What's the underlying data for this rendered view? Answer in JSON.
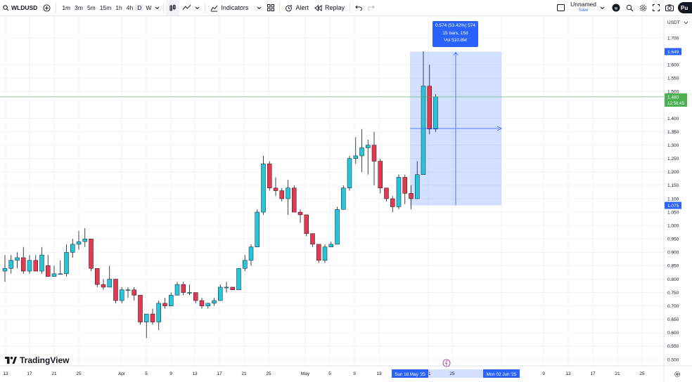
{
  "toolbar": {
    "symbol": "WLDUSD",
    "timeframes": [
      "1m",
      "3m",
      "5m",
      "15m",
      "1h",
      "4h",
      "D",
      "W"
    ],
    "active_timeframe": "D",
    "indicators_label": "Indicators",
    "alert_label": "Alert",
    "replay_label": "Replay",
    "layout_name": "Unnamed",
    "layout_save": "Save",
    "publish_label": "Pu"
  },
  "price_axis": {
    "currency": "USDT",
    "ticks": [
      "1.700",
      "1.600",
      "1.550",
      "1.500",
      "1.400",
      "1.350",
      "1.300",
      "1.250",
      "1.200",
      "1.150",
      "1.100",
      "1.050",
      "1.000",
      "0.950",
      "0.900",
      "0.850",
      "0.800",
      "0.750",
      "0.700",
      "0.650",
      "0.600",
      "0.550",
      "0.500"
    ],
    "range_top_label": "1.649",
    "range_bottom_label": "1.075",
    "last_price": "1.480",
    "countdown": "12:56:45"
  },
  "time_axis": {
    "labels": [
      "13",
      "17",
      "21",
      "25",
      "Apr",
      "5",
      "9",
      "13",
      "17",
      "21",
      "25",
      "May",
      "5",
      "9",
      "13",
      "21",
      "25",
      "2",
      "9",
      "13",
      "17",
      "21",
      "25"
    ],
    "range_start": "Sun 18 May '25",
    "range_end": "Mon 02 Jun '25"
  },
  "measure_tooltip": {
    "line1": "0.574 (53.42%) 574",
    "line2": "15 bars, 15d",
    "line3": "Vol 510.8M"
  },
  "brand": {
    "name": "TradingView"
  },
  "colors": {
    "up": "#26c6da",
    "down": "#e53950",
    "range": "#2962ff",
    "last": "#4caf50"
  },
  "chart_data": {
    "type": "candlestick",
    "ylim": [
      0.5,
      1.72
    ],
    "candles": [
      {
        "o": 0.83,
        "h": 0.89,
        "l": 0.79,
        "c": 0.84
      },
      {
        "o": 0.84,
        "h": 0.89,
        "l": 0.82,
        "c": 0.87
      },
      {
        "o": 0.87,
        "h": 0.9,
        "l": 0.84,
        "c": 0.88
      },
      {
        "o": 0.88,
        "h": 0.92,
        "l": 0.82,
        "c": 0.83
      },
      {
        "o": 0.83,
        "h": 0.89,
        "l": 0.82,
        "c": 0.87
      },
      {
        "o": 0.87,
        "h": 0.89,
        "l": 0.83,
        "c": 0.83
      },
      {
        "o": 0.83,
        "h": 0.92,
        "l": 0.82,
        "c": 0.89
      },
      {
        "o": 0.85,
        "h": 0.89,
        "l": 0.81,
        "c": 0.81
      },
      {
        "o": 0.81,
        "h": 0.85,
        "l": 0.81,
        "c": 0.82
      },
      {
        "o": 0.82,
        "h": 0.87,
        "l": 0.82,
        "c": 0.82
      },
      {
        "o": 0.82,
        "h": 0.93,
        "l": 0.81,
        "c": 0.9
      },
      {
        "o": 0.9,
        "h": 0.95,
        "l": 0.88,
        "c": 0.93
      },
      {
        "o": 0.93,
        "h": 0.98,
        "l": 0.91,
        "c": 0.94
      },
      {
        "o": 0.94,
        "h": 0.99,
        "l": 0.92,
        "c": 0.95
      },
      {
        "o": 0.95,
        "h": 0.95,
        "l": 0.83,
        "c": 0.84
      },
      {
        "o": 0.84,
        "h": 0.84,
        "l": 0.77,
        "c": 0.78
      },
      {
        "o": 0.78,
        "h": 0.8,
        "l": 0.76,
        "c": 0.77
      },
      {
        "o": 0.77,
        "h": 0.85,
        "l": 0.77,
        "c": 0.8
      },
      {
        "o": 0.8,
        "h": 0.8,
        "l": 0.71,
        "c": 0.72
      },
      {
        "o": 0.72,
        "h": 0.77,
        "l": 0.71,
        "c": 0.76
      },
      {
        "o": 0.76,
        "h": 0.77,
        "l": 0.73,
        "c": 0.76
      },
      {
        "o": 0.76,
        "h": 0.77,
        "l": 0.72,
        "c": 0.74
      },
      {
        "o": 0.74,
        "h": 0.74,
        "l": 0.63,
        "c": 0.64
      },
      {
        "o": 0.64,
        "h": 0.67,
        "l": 0.58,
        "c": 0.67
      },
      {
        "o": 0.67,
        "h": 0.69,
        "l": 0.63,
        "c": 0.64
      },
      {
        "o": 0.64,
        "h": 0.72,
        "l": 0.61,
        "c": 0.71
      },
      {
        "o": 0.71,
        "h": 0.73,
        "l": 0.69,
        "c": 0.7
      },
      {
        "o": 0.7,
        "h": 0.75,
        "l": 0.7,
        "c": 0.74
      },
      {
        "o": 0.74,
        "h": 0.79,
        "l": 0.74,
        "c": 0.78
      },
      {
        "o": 0.78,
        "h": 0.79,
        "l": 0.74,
        "c": 0.75
      },
      {
        "o": 0.75,
        "h": 0.78,
        "l": 0.74,
        "c": 0.75
      },
      {
        "o": 0.75,
        "h": 0.75,
        "l": 0.71,
        "c": 0.72
      },
      {
        "o": 0.72,
        "h": 0.73,
        "l": 0.69,
        "c": 0.7
      },
      {
        "o": 0.7,
        "h": 0.71,
        "l": 0.69,
        "c": 0.71
      },
      {
        "o": 0.71,
        "h": 0.73,
        "l": 0.7,
        "c": 0.72
      },
      {
        "o": 0.72,
        "h": 0.78,
        "l": 0.72,
        "c": 0.77
      },
      {
        "o": 0.77,
        "h": 0.79,
        "l": 0.75,
        "c": 0.77
      },
      {
        "o": 0.77,
        "h": 0.77,
        "l": 0.76,
        "c": 0.76
      },
      {
        "o": 0.76,
        "h": 0.84,
        "l": 0.76,
        "c": 0.84
      },
      {
        "o": 0.84,
        "h": 0.89,
        "l": 0.83,
        "c": 0.87
      },
      {
        "o": 0.87,
        "h": 0.93,
        "l": 0.85,
        "c": 0.92
      },
      {
        "o": 0.92,
        "h": 1.06,
        "l": 0.92,
        "c": 1.05
      },
      {
        "o": 1.05,
        "h": 1.26,
        "l": 1.04,
        "c": 1.23
      },
      {
        "o": 1.23,
        "h": 1.24,
        "l": 1.13,
        "c": 1.14
      },
      {
        "o": 1.14,
        "h": 1.18,
        "l": 1.11,
        "c": 1.13
      },
      {
        "o": 1.13,
        "h": 1.14,
        "l": 1.09,
        "c": 1.1
      },
      {
        "o": 1.1,
        "h": 1.17,
        "l": 1.04,
        "c": 1.14
      },
      {
        "o": 1.14,
        "h": 1.15,
        "l": 1.05,
        "c": 1.05
      },
      {
        "o": 1.05,
        "h": 1.06,
        "l": 1.01,
        "c": 1.04
      },
      {
        "o": 1.04,
        "h": 1.04,
        "l": 0.96,
        "c": 0.97
      },
      {
        "o": 0.97,
        "h": 0.97,
        "l": 0.92,
        "c": 0.93
      },
      {
        "o": 0.93,
        "h": 0.93,
        "l": 0.86,
        "c": 0.87
      },
      {
        "o": 0.87,
        "h": 0.93,
        "l": 0.86,
        "c": 0.92
      },
      {
        "o": 0.92,
        "h": 0.94,
        "l": 0.92,
        "c": 0.93
      },
      {
        "o": 0.93,
        "h": 1.07,
        "l": 0.93,
        "c": 1.06
      },
      {
        "o": 1.06,
        "h": 1.15,
        "l": 1.06,
        "c": 1.14
      },
      {
        "o": 1.14,
        "h": 1.26,
        "l": 1.13,
        "c": 1.25
      },
      {
        "o": 1.25,
        "h": 1.33,
        "l": 1.23,
        "c": 1.26
      },
      {
        "o": 1.26,
        "h": 1.36,
        "l": 1.2,
        "c": 1.29
      },
      {
        "o": 1.29,
        "h": 1.32,
        "l": 1.19,
        "c": 1.3
      },
      {
        "o": 1.3,
        "h": 1.35,
        "l": 1.15,
        "c": 1.24
      },
      {
        "o": 1.24,
        "h": 1.25,
        "l": 1.12,
        "c": 1.14
      },
      {
        "o": 1.14,
        "h": 1.14,
        "l": 1.09,
        "c": 1.1
      },
      {
        "o": 1.1,
        "h": 1.11,
        "l": 1.05,
        "c": 1.07
      },
      {
        "o": 1.07,
        "h": 1.19,
        "l": 1.06,
        "c": 1.18
      },
      {
        "o": 1.18,
        "h": 1.19,
        "l": 1.08,
        "c": 1.12
      },
      {
        "o": 1.12,
        "h": 1.15,
        "l": 1.06,
        "c": 1.1
      },
      {
        "o": 1.1,
        "h": 1.24,
        "l": 1.1,
        "c": 1.19
      },
      {
        "o": 1.19,
        "h": 1.65,
        "l": 1.19,
        "c": 1.52
      },
      {
        "o": 1.52,
        "h": 1.6,
        "l": 1.34,
        "c": 1.36
      },
      {
        "o": 1.36,
        "h": 1.49,
        "l": 1.35,
        "c": 1.48
      }
    ]
  }
}
